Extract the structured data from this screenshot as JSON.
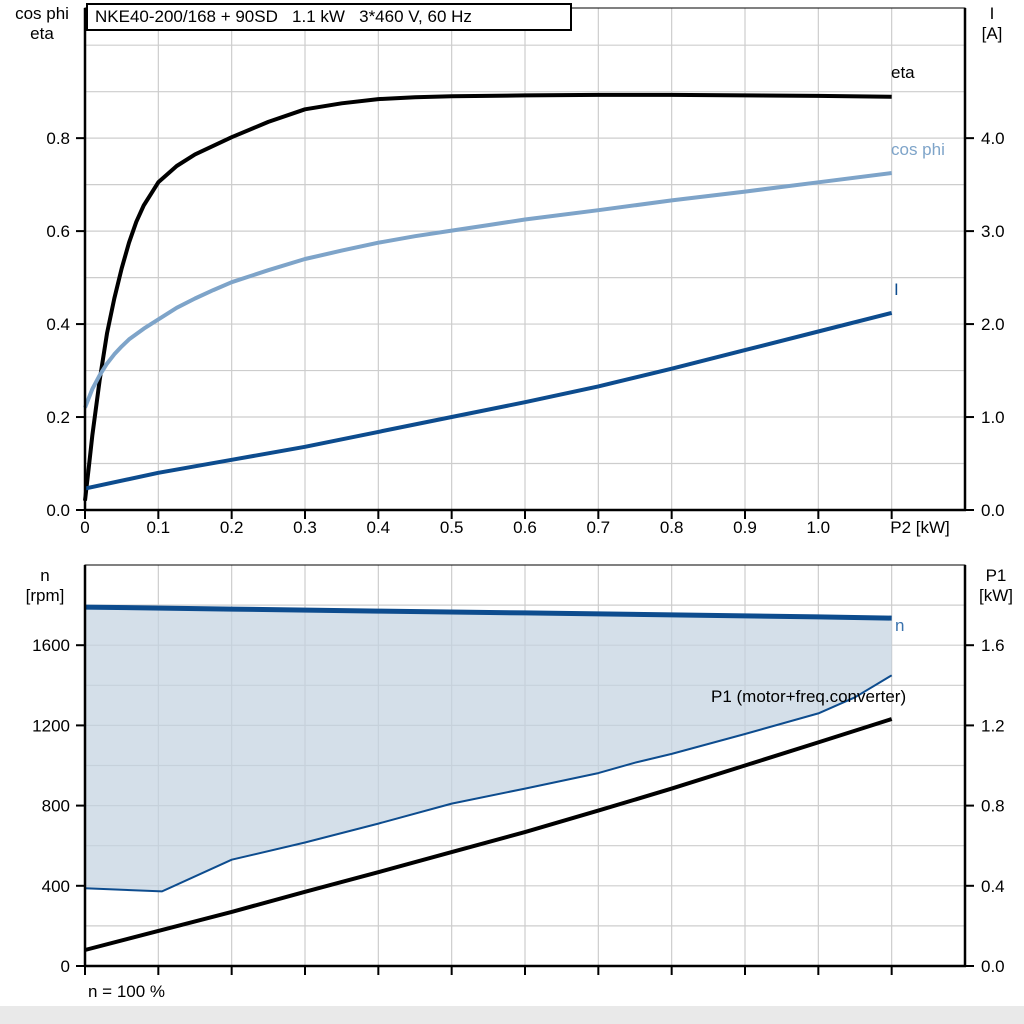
{
  "window": {
    "bg": "#ffffff",
    "footer_strip_color": "#e9e9e9"
  },
  "title_box": {
    "text": "NKE40-200/168 + 90SD   1.1 kW   3*460 V, 60 Hz"
  },
  "colors": {
    "black_curve": "#000000",
    "dark_blue_curve": "#0d4c8e",
    "light_blue_curve": "#7ea4c9",
    "band_fill": "rgba(195,210,225,0.72)",
    "gridline": "#cdcdcd",
    "n_label_blue": "#3a72ad"
  },
  "top_chart": {
    "y_left_title_line1": "cos phi",
    "y_left_title_line2": "eta",
    "y_right_title_line1": "I",
    "y_right_title_line2": "[A]",
    "x_title": "P2 [kW]",
    "curve_labels": {
      "eta": "eta",
      "cos_phi": "cos phi",
      "current": "I"
    }
  },
  "bottom_chart": {
    "y_left_title_line1": "n",
    "y_left_title_line2": "[rpm]",
    "y_right_title_line1": "P1",
    "y_right_title_line2": "[kW]",
    "curve_labels": {
      "n": "n",
      "p1": "P1 (motor+freq.converter)"
    },
    "footnote": "n = 100 %"
  },
  "chart_data": [
    {
      "id": "top",
      "type": "line",
      "title": "NKE40-200/168 + 90SD  1.1 kW  3*460 V, 60 Hz",
      "x": {
        "label": "P2 [kW]",
        "min": 0,
        "max": 1.2,
        "grid_step": 0.1,
        "ticks": [
          0,
          0.1,
          0.2,
          0.3,
          0.4,
          0.5,
          0.6,
          0.7,
          0.8,
          0.9,
          1.0,
          1.1
        ],
        "tick_labels": [
          "0",
          "0.1",
          "0.2",
          "0.3",
          "0.4",
          "0.5",
          "0.6",
          "0.7",
          "0.8",
          "0.9",
          "1.0",
          ""
        ]
      },
      "y_left": {
        "label": "cos phi / eta",
        "min": 0,
        "max": 1.08,
        "grid_step": 0.1,
        "ticks": [
          0,
          0.2,
          0.4,
          0.6,
          0.8
        ],
        "tick_labels": [
          "0.0",
          "0.2",
          "0.4",
          "0.6",
          "0.8"
        ]
      },
      "y_right": {
        "label": "I [A]",
        "min": 0,
        "max": 5.4,
        "ticks": [
          0,
          1,
          2,
          3,
          4
        ],
        "tick_labels": [
          "0.0",
          "1.0",
          "2.0",
          "3.0",
          "4.0"
        ]
      },
      "series": [
        {
          "name": "eta",
          "axis": "left",
          "color": "#000000",
          "width": 4,
          "points": [
            [
              0,
              0.02
            ],
            [
              0.005,
              0.09
            ],
            [
              0.01,
              0.16
            ],
            [
              0.02,
              0.28
            ],
            [
              0.03,
              0.38
            ],
            [
              0.04,
              0.455
            ],
            [
              0.05,
              0.52
            ],
            [
              0.06,
              0.575
            ],
            [
              0.07,
              0.62
            ],
            [
              0.08,
              0.655
            ],
            [
              0.09,
              0.68
            ],
            [
              0.1,
              0.705
            ],
            [
              0.125,
              0.74
            ],
            [
              0.15,
              0.765
            ],
            [
              0.2,
              0.802
            ],
            [
              0.25,
              0.835
            ],
            [
              0.3,
              0.862
            ],
            [
              0.35,
              0.875
            ],
            [
              0.4,
              0.884
            ],
            [
              0.45,
              0.888
            ],
            [
              0.5,
              0.89
            ],
            [
              0.6,
              0.892
            ],
            [
              0.7,
              0.893
            ],
            [
              0.8,
              0.893
            ],
            [
              0.9,
              0.892
            ],
            [
              1,
              0.891
            ],
            [
              1.1,
              0.889
            ]
          ]
        },
        {
          "name": "cos phi",
          "axis": "left",
          "color": "#7ea4c9",
          "width": 4,
          "points": [
            [
              0,
              0.22
            ],
            [
              0.01,
              0.26
            ],
            [
              0.02,
              0.29
            ],
            [
              0.03,
              0.315
            ],
            [
              0.04,
              0.335
            ],
            [
              0.05,
              0.352
            ],
            [
              0.06,
              0.367
            ],
            [
              0.08,
              0.39
            ],
            [
              0.1,
              0.41
            ],
            [
              0.125,
              0.435
            ],
            [
              0.15,
              0.455
            ],
            [
              0.175,
              0.473
            ],
            [
              0.2,
              0.49
            ],
            [
              0.25,
              0.516
            ],
            [
              0.3,
              0.54
            ],
            [
              0.35,
              0.558
            ],
            [
              0.4,
              0.575
            ],
            [
              0.45,
              0.589
            ],
            [
              0.5,
              0.601
            ],
            [
              0.55,
              0.613
            ],
            [
              0.6,
              0.625
            ],
            [
              0.7,
              0.645
            ],
            [
              0.8,
              0.666
            ],
            [
              0.9,
              0.685
            ],
            [
              1,
              0.705
            ],
            [
              1.1,
              0.725
            ]
          ]
        },
        {
          "name": "I",
          "axis": "right",
          "color": "#0d4c8e",
          "width": 4,
          "points": [
            [
              0,
              0.23
            ],
            [
              0.1,
              0.4
            ],
            [
              0.2,
              0.54
            ],
            [
              0.3,
              0.68
            ],
            [
              0.4,
              0.84
            ],
            [
              0.5,
              1
            ],
            [
              0.6,
              1.16
            ],
            [
              0.7,
              1.33
            ],
            [
              0.8,
              1.52
            ],
            [
              0.9,
              1.72
            ],
            [
              1,
              1.92
            ],
            [
              1.1,
              2.12
            ]
          ]
        }
      ]
    },
    {
      "id": "bottom",
      "type": "line",
      "title": "Speed range and input power",
      "x": {
        "label": "",
        "min": 0,
        "max": 1.2,
        "grid_step": 0.1,
        "ticks": [
          0,
          0.1,
          0.2,
          0.3,
          0.4,
          0.5,
          0.6,
          0.7,
          0.8,
          0.9,
          1.0,
          1.1
        ],
        "tick_labels": [
          "",
          "",
          "",
          "",
          "",
          "",
          "",
          "",
          "",
          "",
          "",
          ""
        ]
      },
      "y_left": {
        "label": "n [rpm]",
        "min": 0,
        "max": 2000,
        "grid_step": 200,
        "ticks": [
          0,
          400,
          800,
          1200,
          1600
        ],
        "tick_labels": [
          "0",
          "400",
          "800",
          "1200",
          "1600"
        ]
      },
      "y_right": {
        "label": "P1 [kW]",
        "min": 0,
        "max": 2.0,
        "ticks": [
          0,
          0.4,
          0.8,
          1.2,
          1.6
        ],
        "tick_labels": [
          "0.0",
          "0.4",
          "0.8",
          "1.2",
          "1.6"
        ]
      },
      "band": {
        "upper": "n",
        "lower": "n min",
        "color": "rgba(195,210,225,0.72)"
      },
      "series": [
        {
          "name": "n min",
          "axis": "left",
          "color": "#0d4c8e",
          "width": 2,
          "points": [
            [
              0,
              388
            ],
            [
              0.05,
              380
            ],
            [
              0.105,
              372
            ],
            [
              0.2,
              530
            ],
            [
              0.3,
              616
            ],
            [
              0.4,
              710
            ],
            [
              0.5,
              810
            ],
            [
              0.6,
              885
            ],
            [
              0.7,
              962
            ],
            [
              0.75,
              1014
            ],
            [
              0.8,
              1058
            ],
            [
              0.9,
              1157
            ],
            [
              1,
              1260
            ],
            [
              1.05,
              1340
            ],
            [
              1.1,
              1450
            ]
          ]
        },
        {
          "name": "n",
          "axis": "left",
          "color": "#0d4c8e",
          "width": 5,
          "points": [
            [
              0,
              1790
            ],
            [
              0.2,
              1780
            ],
            [
              0.4,
              1770
            ],
            [
              0.6,
              1761
            ],
            [
              0.8,
              1751
            ],
            [
              1,
              1741
            ],
            [
              1.1,
              1735
            ]
          ]
        },
        {
          "name": "P1 (motor+freq.converter)",
          "axis": "right",
          "color": "#000000",
          "width": 4,
          "points": [
            [
              0,
              0.08
            ],
            [
              0.1,
              0.175
            ],
            [
              0.2,
              0.27
            ],
            [
              0.3,
              0.37
            ],
            [
              0.4,
              0.468
            ],
            [
              0.5,
              0.568
            ],
            [
              0.6,
              0.668
            ],
            [
              0.7,
              0.775
            ],
            [
              0.8,
              0.885
            ],
            [
              0.9,
              1
            ],
            [
              1,
              1.115
            ],
            [
              1.1,
              1.232
            ]
          ]
        }
      ]
    }
  ]
}
